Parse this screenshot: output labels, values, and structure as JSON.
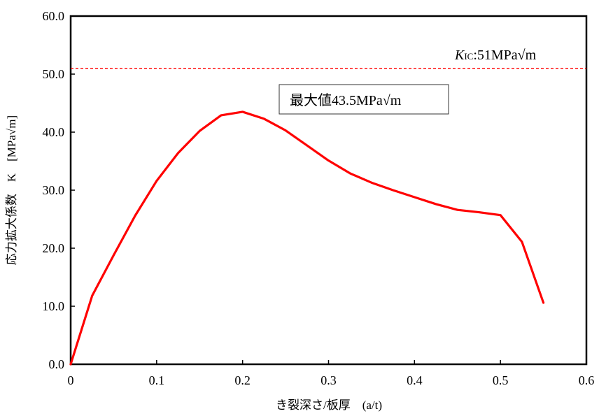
{
  "chart_data": {
    "type": "line",
    "xlabel": "き裂深さ/板厚　(a/t)",
    "ylabel": "応力拡大係数　K　[MPa√m]",
    "xlim": [
      0,
      0.6
    ],
    "ylim": [
      0,
      60
    ],
    "x_ticks": [
      {
        "value": 0,
        "label": "0"
      },
      {
        "value": 0.1,
        "label": "0.1"
      },
      {
        "value": 0.2,
        "label": "0.2"
      },
      {
        "value": 0.3,
        "label": "0.3"
      },
      {
        "value": 0.4,
        "label": "0.4"
      },
      {
        "value": 0.5,
        "label": "0.5"
      },
      {
        "value": 0.6,
        "label": "0.6"
      }
    ],
    "y_ticks": [
      {
        "value": 0,
        "label": "0.0"
      },
      {
        "value": 10,
        "label": "10.0"
      },
      {
        "value": 20,
        "label": "20.0"
      },
      {
        "value": 30,
        "label": "30.0"
      },
      {
        "value": 40,
        "label": "40.0"
      },
      {
        "value": 50,
        "label": "50.0"
      },
      {
        "value": 60,
        "label": "60.0"
      }
    ],
    "grid": false,
    "series": [
      {
        "x": [
          0,
          0.025,
          0.05,
          0.075,
          0.1,
          0.125,
          0.15,
          0.175,
          0.2,
          0.225,
          0.25,
          0.275,
          0.3,
          0.325,
          0.35,
          0.375,
          0.4,
          0.425,
          0.45,
          0.475,
          0.5,
          0.525,
          0.55
        ],
        "y": [
          0,
          11.8,
          18.8,
          25.6,
          31.6,
          36.4,
          40.2,
          42.9,
          43.5,
          42.3,
          40.3,
          37.7,
          35.1,
          32.9,
          31.3,
          30.0,
          28.8,
          27.6,
          26.6,
          26.2,
          25.7,
          21.1,
          10.6
        ],
        "color": "#ff0000"
      }
    ],
    "reference_line": {
      "y": 51,
      "color": "#ff0000",
      "style": "dashed",
      "label_symbol": "K",
      "label_subscript": "IC",
      "label_text": ":51MPa√m"
    },
    "annotation_box": {
      "text": "最大値43.5MPa√m"
    }
  }
}
